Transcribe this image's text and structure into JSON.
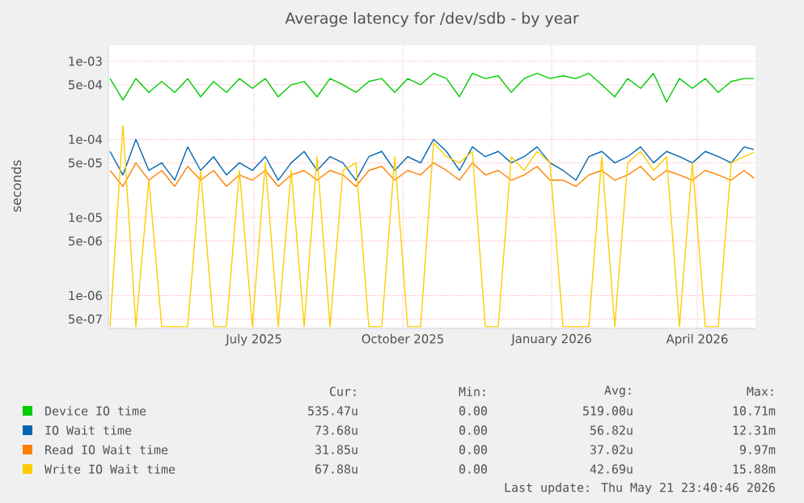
{
  "chart_data": {
    "type": "line",
    "title": "Average latency for /dev/sdb - by year",
    "ylabel": "seconds",
    "x": [
      "2025-04-03",
      "2025-04-11",
      "2025-04-19",
      "2025-04-27",
      "2025-05-05",
      "2025-05-13",
      "2025-05-21",
      "2025-05-29",
      "2025-06-06",
      "2025-06-14",
      "2025-06-22",
      "2025-06-30",
      "2025-07-08",
      "2025-07-16",
      "2025-07-24",
      "2025-08-01",
      "2025-08-09",
      "2025-08-17",
      "2025-08-25",
      "2025-09-02",
      "2025-09-10",
      "2025-09-18",
      "2025-09-26",
      "2025-10-04",
      "2025-10-12",
      "2025-10-20",
      "2025-10-28",
      "2025-11-05",
      "2025-11-13",
      "2025-11-21",
      "2025-11-29",
      "2025-12-07",
      "2025-12-15",
      "2025-12-23",
      "2025-12-31",
      "2026-01-08",
      "2026-01-16",
      "2026-01-24",
      "2026-02-01",
      "2026-02-09",
      "2026-02-17",
      "2026-02-25",
      "2026-03-05",
      "2026-03-13",
      "2026-03-21",
      "2026-03-29",
      "2026-04-06",
      "2026-04-14",
      "2026-04-22",
      "2026-04-30",
      "2026-05-06"
    ],
    "series": [
      {
        "name": "Device IO time",
        "color": "#00cc00",
        "values": [
          0.0006,
          0.00032,
          0.0006,
          0.0004,
          0.00055,
          0.0004,
          0.0006,
          0.00035,
          0.00055,
          0.0004,
          0.0006,
          0.00045,
          0.0006,
          0.00035,
          0.0005,
          0.00055,
          0.00035,
          0.0006,
          0.0005,
          0.0004,
          0.00055,
          0.0006,
          0.0004,
          0.0006,
          0.0005,
          0.0007,
          0.0006,
          0.00035,
          0.0007,
          0.0006,
          0.00065,
          0.0004,
          0.0006,
          0.0007,
          0.0006,
          0.00065,
          0.0006,
          0.0007,
          0.0005,
          0.00035,
          0.0006,
          0.00045,
          0.0007,
          0.0003,
          0.0006,
          0.00045,
          0.0006,
          0.0004,
          0.00055,
          0.0006,
          0.0006
        ]
      },
      {
        "name": "IO Wait time",
        "color": "#0066b3",
        "values": [
          7e-05,
          3.5e-05,
          0.0001,
          4e-05,
          5e-05,
          3e-05,
          8e-05,
          4e-05,
          6e-05,
          3.5e-05,
          5e-05,
          4e-05,
          6e-05,
          3e-05,
          5e-05,
          7e-05,
          4e-05,
          6e-05,
          5e-05,
          3e-05,
          6e-05,
          7e-05,
          4e-05,
          6e-05,
          5e-05,
          0.0001,
          7e-05,
          4e-05,
          8e-05,
          6e-05,
          7e-05,
          5e-05,
          6e-05,
          8e-05,
          5e-05,
          4e-05,
          3e-05,
          6e-05,
          7e-05,
          5e-05,
          6e-05,
          8e-05,
          5e-05,
          7e-05,
          6e-05,
          5e-05,
          7e-05,
          6e-05,
          5e-05,
          8e-05,
          7.4e-05
        ]
      },
      {
        "name": "Read IO Wait time",
        "color": "#ff8000",
        "values": [
          4e-05,
          2.5e-05,
          5e-05,
          3e-05,
          4e-05,
          2.5e-05,
          4.5e-05,
          3e-05,
          4e-05,
          2.5e-05,
          3.5e-05,
          3e-05,
          4e-05,
          2.5e-05,
          3.5e-05,
          4e-05,
          3e-05,
          4e-05,
          3.5e-05,
          2.5e-05,
          4e-05,
          4.5e-05,
          3e-05,
          4e-05,
          3.5e-05,
          5e-05,
          4e-05,
          3e-05,
          5e-05,
          3.5e-05,
          4e-05,
          3e-05,
          3.5e-05,
          4.5e-05,
          3e-05,
          3e-05,
          2.5e-05,
          3.5e-05,
          4e-05,
          3e-05,
          3.5e-05,
          4.5e-05,
          3e-05,
          4e-05,
          3.5e-05,
          3e-05,
          4e-05,
          3.5e-05,
          3e-05,
          4e-05,
          3.2e-05
        ]
      },
      {
        "name": "Write IO Wait time",
        "color": "#ffcc00",
        "values": [
          4e-07,
          0.00015,
          4e-07,
          3e-05,
          4e-07,
          4e-07,
          4e-07,
          4e-05,
          4e-07,
          4e-07,
          4e-05,
          4e-07,
          5e-05,
          4e-07,
          4e-05,
          4e-07,
          6e-05,
          4e-07,
          4e-05,
          5e-05,
          4e-07,
          4e-07,
          6e-05,
          4e-07,
          4e-07,
          9e-05,
          6e-05,
          5e-05,
          7e-05,
          4e-07,
          4e-07,
          6e-05,
          4e-05,
          7e-05,
          5e-05,
          4e-07,
          4e-07,
          4e-07,
          6e-05,
          4e-07,
          5e-05,
          7e-05,
          4e-05,
          6e-05,
          4e-07,
          5e-05,
          4e-07,
          4e-07,
          5e-05,
          6e-05,
          6.8e-05
        ]
      }
    ],
    "xlim": [
      "2025-04-02",
      "2026-05-07"
    ],
    "xticks": [
      {
        "value": "2025-07-01",
        "label": "July 2025"
      },
      {
        "value": "2025-10-01",
        "label": "October 2025"
      },
      {
        "value": "2026-01-01",
        "label": "January 2026"
      },
      {
        "value": "2026-04-01",
        "label": "April 2026"
      }
    ],
    "ylim": [
      3.8e-07,
      0.0016
    ],
    "log": "y",
    "yticks": [
      {
        "value": 0.001,
        "label": "1e-03"
      },
      {
        "value": 0.0005,
        "label": "5e-04"
      },
      {
        "value": 0.0001,
        "label": "1e-04"
      },
      {
        "value": 5e-05,
        "label": "5e-05"
      },
      {
        "value": 1e-05,
        "label": "1e-05"
      },
      {
        "value": 5e-06,
        "label": "5e-06"
      },
      {
        "value": 1e-06,
        "label": "1e-06"
      },
      {
        "value": 5e-07,
        "label": "5e-07"
      }
    ],
    "grid": true,
    "legend": "bottom",
    "marker": "none",
    "line_style": "solid",
    "annotations": [
      "Cur:",
      "Min:",
      "Avg:",
      "Max:",
      "535.47u",
      "0.00",
      "519.00u",
      "10.71m",
      "73.68u",
      "0.00",
      "56.82u",
      "12.31m",
      "31.85u",
      "0.00",
      "37.02u",
      "9.97m",
      "67.88u",
      "0.00",
      "42.69u",
      "15.88m",
      "Last update: Thu May 21 23:40:46 2026"
    ]
  }
}
